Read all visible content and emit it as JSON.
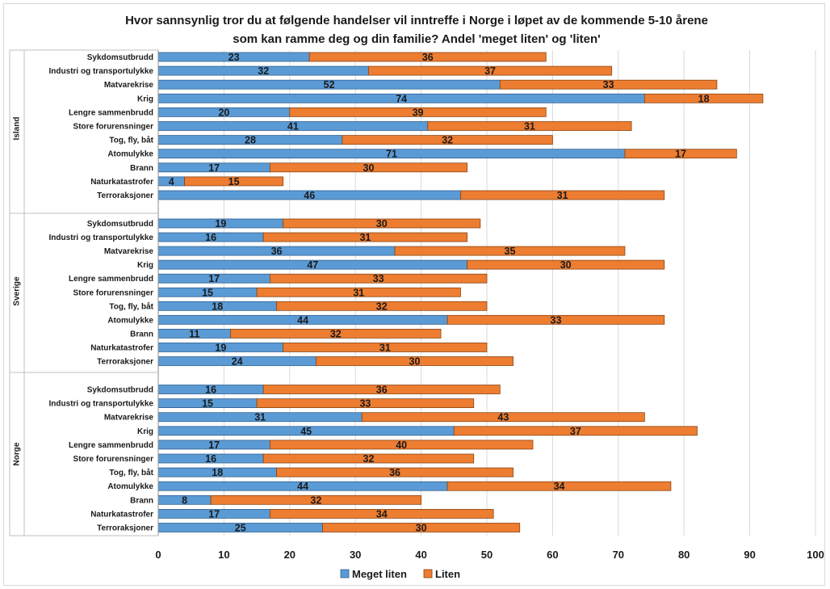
{
  "chart_data": {
    "type": "bar",
    "orientation": "horizontal",
    "stacked": true,
    "title_lines": [
      "Hvor sannsynlig tror du at følgende handelser vil inntreffe i Norge i løpet av de kommende 5-10 årene",
      "som kan ramme deg og din familie? Andel 'meget liten' og 'liten'"
    ],
    "xlim": [
      0,
      100
    ],
    "x_ticks": [
      0,
      10,
      20,
      30,
      40,
      50,
      60,
      70,
      80,
      90,
      100
    ],
    "grid": "vertical",
    "legend_position": "bottom",
    "categories": [
      "Sykdomsutbrudd",
      "Industri og transportulykke",
      "Matvarekrise",
      "Krig",
      "Lengre sammenbrudd",
      "Store forurensninger",
      "Tog, fly, båt",
      "Atomulykke",
      "Brann",
      "Naturkatastrofer",
      "Terroraksjoner"
    ],
    "series_names": [
      "Meget liten",
      "Liten"
    ],
    "colors": [
      "#5b9bd5",
      "#ed7d31"
    ],
    "groups": [
      {
        "name": "Island",
        "meget_liten": [
          23,
          32,
          52,
          74,
          20,
          41,
          28,
          71,
          17,
          4,
          46
        ],
        "liten": [
          36,
          37,
          33,
          18,
          39,
          31,
          32,
          17,
          30,
          15,
          31
        ]
      },
      {
        "name": "Sverige",
        "meget_liten": [
          19,
          16,
          36,
          47,
          17,
          15,
          18,
          44,
          11,
          19,
          24
        ],
        "liten": [
          30,
          31,
          35,
          30,
          33,
          31,
          32,
          33,
          32,
          31,
          30
        ]
      },
      {
        "name": "Norge",
        "meget_liten": [
          16,
          15,
          31,
          45,
          17,
          16,
          18,
          44,
          8,
          17,
          25
        ],
        "liten": [
          36,
          33,
          43,
          37,
          40,
          32,
          36,
          34,
          32,
          34,
          30
        ]
      }
    ]
  }
}
